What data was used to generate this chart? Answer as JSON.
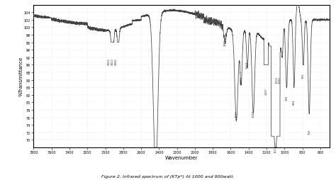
{
  "title": "Figure 2. Infrared spectrum of (KTp*) At 1000 and 900watt.",
  "xlabel": "Wavenumber",
  "ylabel": "%Transmittance",
  "xlim": [
    3800,
    500
  ],
  "ylim": [
    68,
    106
  ],
  "yticks": [
    70,
    72,
    74,
    76,
    78,
    80,
    82,
    84,
    86,
    88,
    90,
    92,
    94,
    96,
    98,
    100,
    102,
    104
  ],
  "xticks": [
    3800,
    3600,
    3400,
    3200,
    3000,
    2800,
    2600,
    2400,
    2200,
    2000,
    1800,
    1600,
    1400,
    1200,
    1000,
    800,
    600
  ],
  "line_color": "#444444",
  "background_color": "#ffffff"
}
